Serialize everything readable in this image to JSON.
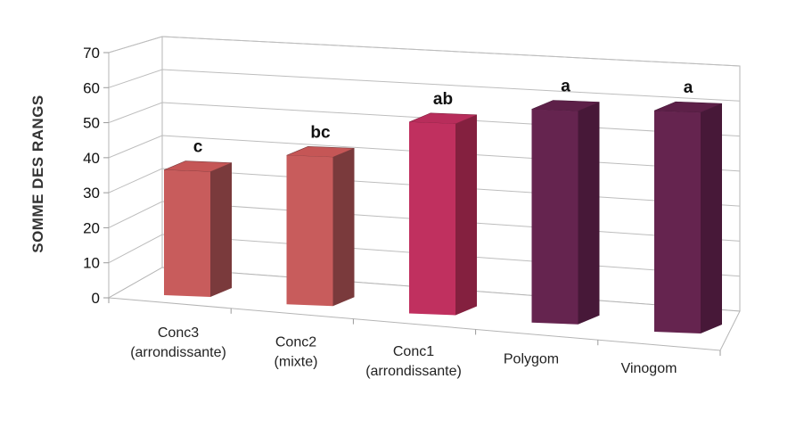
{
  "chart_data": {
    "type": "bar",
    "title": "",
    "xlabel": "",
    "ylabel": "SOMME DES RANGS",
    "ylim": [
      0,
      70
    ],
    "yticks": [
      0,
      10,
      20,
      30,
      40,
      50,
      60,
      70
    ],
    "grid": true,
    "style": "3d-perspective",
    "categories": [
      [
        "Conc3",
        "(arrondissante)"
      ],
      [
        "Conc2",
        "(mixte)"
      ],
      [
        "Conc1",
        "(arrondissante)"
      ],
      [
        "Polygom"
      ],
      [
        "Vinogom"
      ]
    ],
    "values": [
      36,
      42,
      53,
      58,
      59
    ],
    "data_labels": [
      "c",
      "bc",
      "ab",
      "a",
      "a"
    ],
    "colors": [
      "#c85c5c",
      "#c85c5c",
      "#c0305f",
      "#65244f",
      "#65244f"
    ],
    "side_colors": [
      "#7a3a3c",
      "#7a3a3c",
      "#84203f",
      "#471838",
      "#471838"
    ],
    "top_colors": [
      "#c55656",
      "#c55656",
      "#b82d5b",
      "#5d2048",
      "#5d2048"
    ]
  }
}
